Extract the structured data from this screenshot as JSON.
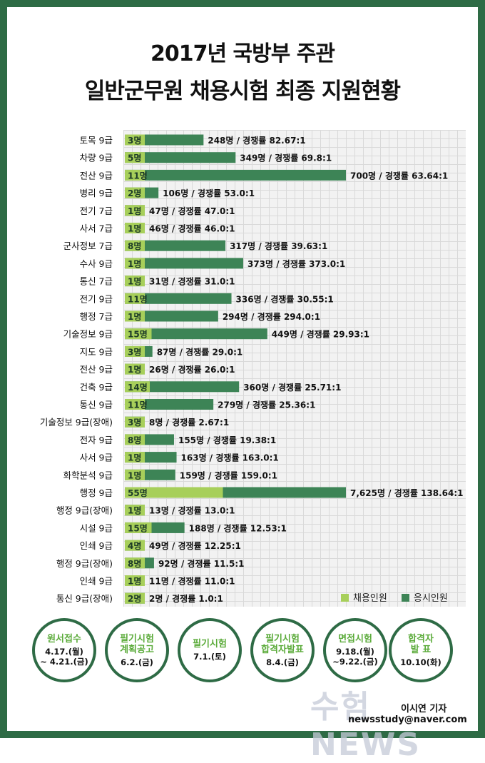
{
  "title_line1": "2017년 국방부 주관",
  "title_line2": "일반군무원 채용시험 최종 지원현황",
  "colors": {
    "border": "#2e6b45",
    "hire": "#a7cf5a",
    "applicant": "#3d8456",
    "accent": "#5bab3a"
  },
  "chart_data": {
    "type": "bar",
    "orientation": "horizontal",
    "stacked": true,
    "series": [
      {
        "name": "채용인원"
      },
      {
        "name": "응시인원"
      }
    ],
    "categories": [
      "토목 9급",
      "차량 9급",
      "전산 9급",
      "병리 9급",
      "전기 7급",
      "사서 7급",
      "군사정보 7급",
      "수사 9급",
      "통신 7급",
      "전기 9급",
      "행정 7급",
      "기술정보 9급",
      "지도 9급",
      "전산 9급",
      "건축 9급",
      "통신 9급",
      "기술정보 9급(장애)",
      "전자 9급",
      "사서 9급",
      "화학분석 9급",
      "행정 9급",
      "행정 9급(장애)",
      "시설 9급",
      "인쇄 9급",
      "행정 9급(장애)",
      "인쇄 9급",
      "통신 9급(장애)"
    ],
    "hires": [
      3,
      5,
      11,
      2,
      1,
      1,
      8,
      1,
      1,
      11,
      1,
      15,
      3,
      1,
      14,
      11,
      3,
      8,
      1,
      1,
      55,
      1,
      15,
      4,
      8,
      1,
      2
    ],
    "hire_labels": [
      "3명",
      "5명",
      "11명",
      "2명",
      "1명",
      "1명",
      "8명",
      "1명",
      "1명",
      "11명",
      "1명",
      "15명",
      "3명",
      "1명",
      "14명",
      "11명",
      "3명",
      "8명",
      "1명",
      "1명",
      "55명",
      "1명",
      "15명",
      "4명",
      "8명",
      "1명",
      "2명"
    ],
    "applicants": [
      248,
      349,
      700,
      106,
      47,
      46,
      317,
      373,
      31,
      336,
      294,
      449,
      87,
      26,
      360,
      279,
      8,
      155,
      163,
      159,
      7625,
      13,
      188,
      49,
      92,
      11,
      2
    ],
    "value_labels": [
      "248명 / 경쟁률 82.67:1",
      "349명 / 경쟁률 69.8:1",
      "700명 / 경쟁률 63.64:1",
      "106명 / 경쟁률 53.0:1",
      "47명 / 경쟁률 47.0:1",
      "46명 / 경쟁률 46.0:1",
      "317명 / 경쟁률 39.63:1",
      "373명 / 경쟁률 373.0:1",
      "31명 / 경쟁률 31.0:1",
      "336명 / 경쟁률 30.55:1",
      "294명 / 경쟁률 294.0:1",
      "449명 / 경쟁률 29.93:1",
      "87명 / 경쟁률 29.0:1",
      "26명 / 경쟁률 26.0:1",
      "360명 / 경쟁률 25.71:1",
      "279명 / 경쟁률 25.36:1",
      "8명 / 경쟁률 2.67:1",
      "155명 / 경쟁률 19.38:1",
      "163명 / 경쟁률 163.0:1",
      "159명 / 경쟁률 159.0:1",
      "7,625명 / 경쟁률 138.64:1",
      "13명 / 경쟁률 13.0:1",
      "188명 / 경쟁률 12.53:1",
      "49명 / 경쟁률 12.25:1",
      "92명 / 경쟁률 11.5:1",
      "11명 / 경쟁률 11.0:1",
      "2명 / 경쟁률 1.0:1"
    ],
    "grid": true,
    "legend_position": "bottom-right"
  },
  "legend": {
    "hire_label": "채용인원",
    "applicant_label": "응시인원"
  },
  "steps": [
    {
      "title": "원서접수",
      "date": "4.17.(월)\n~ 4.21.(금)"
    },
    {
      "title": "필기시험\n계획공고",
      "date": "6.2.(금)"
    },
    {
      "title": "필기시험",
      "date": "7.1.(토)"
    },
    {
      "title": "필기시험\n합격자발표",
      "date": "8.4.(금)"
    },
    {
      "title": "면접시험",
      "date": "9.18.(월)\n~9.22.(금)"
    },
    {
      "title": "합격자\n발 표",
      "date": "10.10(화)"
    }
  ],
  "watermark": "수험NEWS",
  "reporter": "이시연 기자",
  "email": "newsstudy@naver.com"
}
